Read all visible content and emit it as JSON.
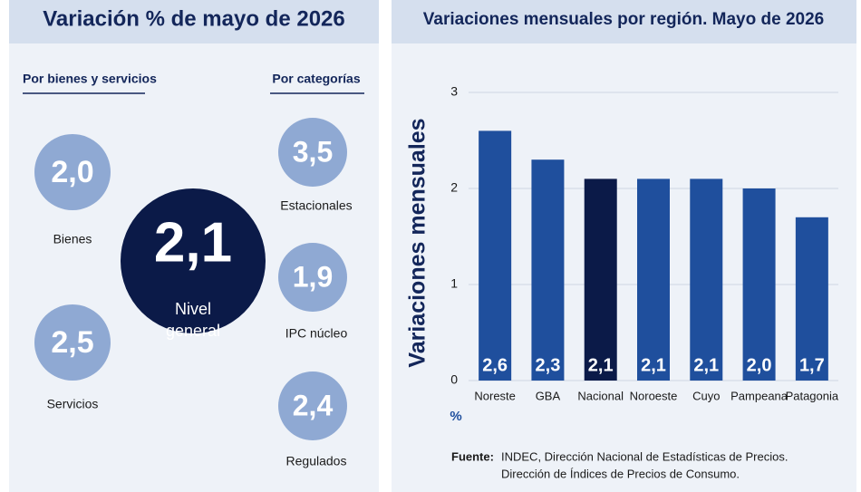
{
  "left_panel": {
    "title": "Variación % de mayo de 2026",
    "goods_header": "Por bienes y servicios",
    "categories_header": "Por categorías",
    "goods": [
      {
        "value": "2,0",
        "label": "Bienes"
      },
      {
        "value": "2,5",
        "label": "Servicios"
      }
    ],
    "general": {
      "value": "2,1",
      "label_line1": "Nivel",
      "label_line2": "general"
    },
    "by_category": [
      {
        "value": "3,5",
        "label": "Estacionales"
      },
      {
        "value": "1,9",
        "label": "IPC núcleo"
      },
      {
        "value": "2,4",
        "label": "Regulados"
      }
    ]
  },
  "chart_data": {
    "type": "bar",
    "title": "Variaciones mensuales por región. Mayo de 2026",
    "y_label": "Variaciones mensuales",
    "y_unit": "%",
    "categories": [
      "Noreste",
      "GBA",
      "Nacional",
      "Noroeste",
      "Cuyo",
      "Pampeana",
      "Patagonia"
    ],
    "values": [
      2.6,
      2.3,
      2.1,
      2.1,
      2.1,
      2.0,
      1.7
    ],
    "value_labels": [
      "2,6",
      "2,3",
      "2,1",
      "2,1",
      "2,1",
      "2,0",
      "1,7"
    ],
    "colors": [
      "#1f4f9d",
      "#1f4f9d",
      "#0b1a48",
      "#1f4f9d",
      "#1f4f9d",
      "#1f4f9d",
      "#1f4f9d"
    ],
    "ylim": [
      0,
      3
    ],
    "yticks": [
      0,
      1,
      2,
      3
    ],
    "grid": true,
    "source_label": "Fuente:",
    "source_line1": "INDEC, Dirección Nacional de Estadísticas de Precios.",
    "source_line2": "Dirección de Índices de Precios de Consumo."
  }
}
